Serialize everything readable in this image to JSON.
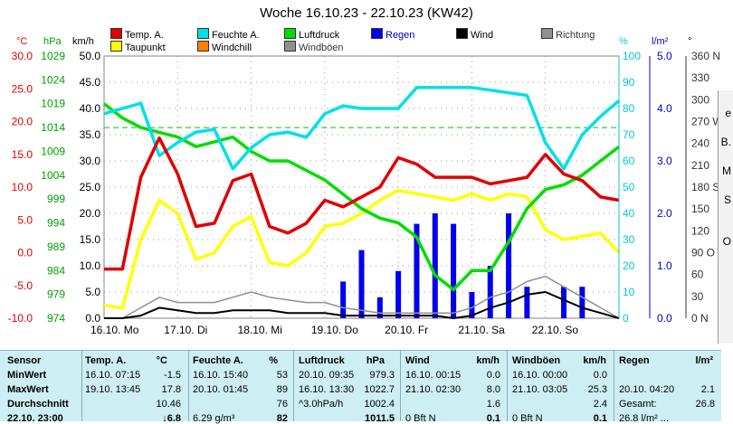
{
  "title": "Woche 16.10.23 - 22.10.23 (KW42)",
  "legend": [
    {
      "label": "Temp. A.",
      "color": "#e00000",
      "row": 0,
      "col": 0
    },
    {
      "label": "Feuchte A.",
      "color": "#00e0e8",
      "row": 0,
      "col": 1
    },
    {
      "label": "Luftdruck",
      "color": "#00dd00",
      "row": 0,
      "col": 2
    },
    {
      "label": "Regen",
      "color": "#0000ee",
      "row": 0,
      "col": 3
    },
    {
      "label": "Wind",
      "color": "#000000",
      "row": 0,
      "col": 4
    },
    {
      "label": "Richtung",
      "color": "#909090",
      "row": 0,
      "col": 5
    },
    {
      "label": "Taupunkt",
      "color": "#ffff00",
      "row": 1,
      "col": 0
    },
    {
      "label": "Windchill",
      "color": "#ff8000",
      "row": 1,
      "col": 1
    },
    {
      "label": "Windböen",
      "color": "#909090",
      "row": 1,
      "col": 2
    }
  ],
  "units": {
    "temp": "°C",
    "pressure": "hPa",
    "wind": "km/h",
    "humidity": "%",
    "rain": "l/m²",
    "direction": "°"
  },
  "axes": {
    "temp_ticks": [
      "30.0",
      "25.0",
      "20.0",
      "15.0",
      "10.0",
      "5.0",
      "0.0",
      "-5.0",
      "-10.0"
    ],
    "pressure_ticks": [
      "1029",
      "1024",
      "1019",
      "1014",
      "1009",
      "1004",
      "999",
      "994",
      "989",
      "984",
      "979",
      "974"
    ],
    "wind_ticks": [
      "50.0",
      "45.0",
      "40.0",
      "35.0",
      "30.0",
      "25.0",
      "20.0",
      "15.0",
      "10.0",
      "5.0",
      "0.0"
    ],
    "humidity_ticks": [
      "100",
      "90",
      "80",
      "70",
      "60",
      "50",
      "40",
      "30",
      "20",
      "10",
      "0"
    ],
    "rain_ticks": [
      "5.0",
      "4.0",
      "3.0",
      "2.0",
      "1.0",
      "0.0"
    ],
    "direction_ticks": [
      "360 N",
      "330",
      "300",
      "270 W",
      "240",
      "210",
      "180 S",
      "150",
      "120",
      "90 O",
      "60",
      "30",
      "0 N"
    ],
    "x_labels": [
      "16.10. Mo",
      "17.10. Di",
      "18.10. Mi",
      "19.10. Do",
      "20.10. Fr",
      "21.10. Sa",
      "22.10. So"
    ]
  },
  "chart_data": {
    "type": "line",
    "title": "Woche 16.10.23 - 22.10.23 (KW42)",
    "x": [
      "16.10. 00:00",
      "16.10. 06:00",
      "16.10. 12:00",
      "16.10. 18:00",
      "17.10. 00:00",
      "17.10. 06:00",
      "17.10. 12:00",
      "17.10. 18:00",
      "18.10. 00:00",
      "18.10. 06:00",
      "18.10. 12:00",
      "18.10. 18:00",
      "19.10. 00:00",
      "19.10. 06:00",
      "19.10. 12:00",
      "19.10. 18:00",
      "20.10. 00:00",
      "20.10. 06:00",
      "20.10. 12:00",
      "20.10. 18:00",
      "21.10. 00:00",
      "21.10. 06:00",
      "21.10. 12:00",
      "21.10. 18:00",
      "22.10. 00:00",
      "22.10. 06:00",
      "22.10. 12:00",
      "22.10. 18:00",
      "23.10. 00:00"
    ],
    "series": [
      {
        "name": "Temp. A.",
        "color": "#e00000",
        "axis": "temp",
        "values": [
          -2.5,
          -2.5,
          11.5,
          17.5,
          12.0,
          4.0,
          4.5,
          11.0,
          12.0,
          4.0,
          3.0,
          4.5,
          8.0,
          7.0,
          8.5,
          10.0,
          14.5,
          13.5,
          11.5,
          11.5,
          11.5,
          10.5,
          11.0,
          11.5,
          15.0,
          12.0,
          11.0,
          8.5,
          8.0
        ]
      },
      {
        "name": "Feuchte A.",
        "color": "#00e0e8",
        "axis": "humidity",
        "values": [
          78,
          80,
          82,
          62,
          67,
          71,
          72,
          57,
          65,
          70,
          71,
          69,
          78,
          81,
          80,
          80,
          80,
          88,
          88,
          88,
          88,
          87,
          86,
          85,
          67,
          57,
          70,
          77,
          83
        ]
      },
      {
        "name": "Luftdruck",
        "color": "#00dd00",
        "axis": "pressure",
        "values": [
          1019,
          1016,
          1014,
          1013,
          1012,
          1010,
          1011,
          1012,
          1009,
          1007,
          1007,
          1005,
          1003,
          1000,
          997,
          995,
          994,
          991,
          983,
          980,
          984,
          984,
          990,
          997,
          1001,
          1002,
          1004,
          1007,
          1010
        ]
      },
      {
        "name": "Taupunkt",
        "color": "#ffff00",
        "axis": "temp",
        "values": [
          -8.0,
          -8.5,
          2.0,
          8.0,
          6.0,
          -1.0,
          0.0,
          4.0,
          5.5,
          -1.5,
          -2.0,
          0.0,
          4.0,
          4.5,
          6.0,
          8.0,
          9.5,
          9.0,
          8.5,
          8.0,
          9.0,
          8.0,
          9.0,
          8.5,
          3.5,
          2.0,
          2.5,
          3.0,
          0.0
        ]
      },
      {
        "name": "Wind",
        "color": "#000000",
        "axis": "wind",
        "values": [
          0.0,
          0.0,
          0.5,
          2.0,
          1.5,
          1.0,
          1.0,
          1.5,
          1.5,
          1.5,
          1.0,
          1.0,
          1.0,
          0.5,
          0.5,
          0.5,
          0.5,
          0.5,
          0.5,
          0.0,
          0.5,
          2.0,
          3.0,
          4.5,
          5.0,
          3.5,
          2.0,
          1.0,
          0.0
        ]
      },
      {
        "name": "Windböen",
        "color": "#909090",
        "axis": "wind",
        "values": [
          0.0,
          0.0,
          2.0,
          4.0,
          3.0,
          3.0,
          3.0,
          4.0,
          5.0,
          4.0,
          3.5,
          3.0,
          3.0,
          2.0,
          1.5,
          1.0,
          1.0,
          1.0,
          1.0,
          1.0,
          2.0,
          4.0,
          5.0,
          7.0,
          8.0,
          6.0,
          4.0,
          2.0,
          0.0
        ]
      },
      {
        "name": "Regen",
        "color": "#0000ee",
        "axis": "rain",
        "type": "bar",
        "values": [
          0,
          0,
          0,
          0,
          0,
          0,
          0,
          0,
          0,
          0,
          0,
          0,
          0,
          0.7,
          1.3,
          0.4,
          0.9,
          1.8,
          2.0,
          1.8,
          0.5,
          1.0,
          2.0,
          0.6,
          0,
          0.6,
          0.6,
          0,
          0
        ]
      }
    ],
    "reference_lines": [
      {
        "axis": "pressure",
        "value": 1014,
        "style": "dashed",
        "color": "#00c800"
      }
    ],
    "ylim_temp": [
      -10,
      30
    ],
    "ylim_pressure": [
      974,
      1029
    ],
    "ylim_wind": [
      0,
      50
    ],
    "ylim_humidity": [
      0,
      100
    ],
    "ylim_rain": [
      0,
      5
    ],
    "ylim_direction": [
      0,
      360
    ],
    "grid": true
  },
  "table": {
    "headers": [
      "Sensor",
      "Temp. A.",
      "°C",
      "Feuchte A.",
      "%",
      "Luftdruck",
      "hPa",
      "Wind",
      "km/h",
      "Windböen",
      "km/h",
      "Regen",
      "l/m²"
    ],
    "rows": [
      {
        "label": "MinWert",
        "temp_time": "16.10.  07:15",
        "temp": "-1.5",
        "hum_time": "16.10.  15:40",
        "hum": "53",
        "press_time": "20.10.  09:35",
        "press": "979.3",
        "wind_time": "16.10.  00:15",
        "wind": "0.0",
        "gust_time": "16.10.  00:00",
        "gust": "0.0",
        "rain_time": "",
        "rain": ""
      },
      {
        "label": "MaxWert",
        "temp_time": "19.10.  13:45",
        "temp": "17.8",
        "hum_time": "20.10.  01:45",
        "hum": "89",
        "press_time": "16.10.  13:30",
        "press": "1022.7",
        "wind_time": "21.10.  02:30",
        "wind": "8.0",
        "gust_time": "21.10.  03:05",
        "gust": "25.3",
        "rain_time": "20.10.  04:20",
        "rain": "2.1"
      },
      {
        "label": "Durchschnitt",
        "temp_time": "",
        "temp": "10.46",
        "hum_time": "",
        "hum": "76",
        "press_time": "^3.0hPa/h",
        "press": "1002.4",
        "wind_time": "",
        "wind": "1.6",
        "gust_time": "",
        "gust": "2.4",
        "rain_time": "Gesamt:",
        "rain": "26.8"
      },
      {
        "label": "22.10.  23:00",
        "temp_time": "",
        "temp": "↓6.8",
        "hum_time": "6.29 g/m³",
        "hum": "82",
        "press_time": "",
        "press": "1011.5",
        "wind_time": "0 Bft N",
        "wind": "0.1",
        "gust_time": "0 Bft N",
        "gust": "0.1",
        "rain_time": "26.8 l/m² ...",
        "rain": ""
      }
    ]
  },
  "cut_labels": [
    "e",
    "B.",
    "M",
    "S",
    "O"
  ]
}
